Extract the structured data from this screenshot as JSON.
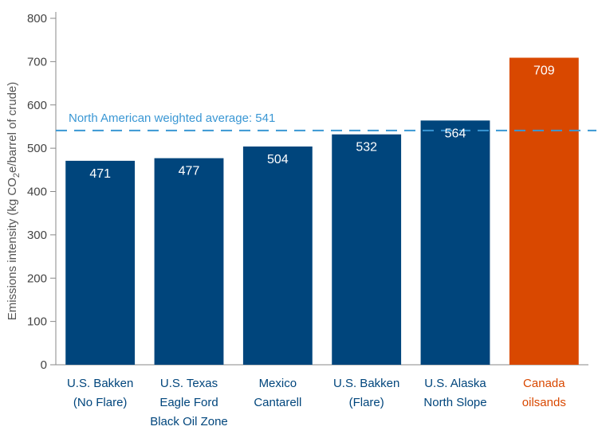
{
  "chart_data": {
    "type": "bar",
    "categories": [
      [
        "U.S. Bakken",
        "(No Flare)"
      ],
      [
        "U.S. Texas",
        "Eagle Ford",
        "Black Oil Zone"
      ],
      [
        "Mexico",
        "Cantarell"
      ],
      [
        "U.S. Bakken",
        "(Flare)"
      ],
      [
        "U.S. Alaska",
        "North Slope"
      ],
      [
        "Canada",
        "oilsands"
      ]
    ],
    "values": [
      471,
      477,
      504,
      532,
      564,
      709
    ],
    "highlight_index": 5,
    "ylabel": {
      "pre": "Emissions intensity (kg CO",
      "sub": "2",
      "post": "e/barrel of crude)"
    },
    "ylim": [
      0,
      800
    ],
    "yticks": [
      0,
      100,
      200,
      300,
      400,
      500,
      600,
      700,
      800
    ],
    "grid": false,
    "reference_line": {
      "value": 541,
      "label": "North American weighted average: 541",
      "style": "dashed"
    },
    "colors": {
      "bar": "#00457c",
      "highlight_bar": "#d94800",
      "highlight_label": "#d94800",
      "category_label": "#00457c",
      "reference": "#3a97d4",
      "axis": "#888888"
    }
  }
}
